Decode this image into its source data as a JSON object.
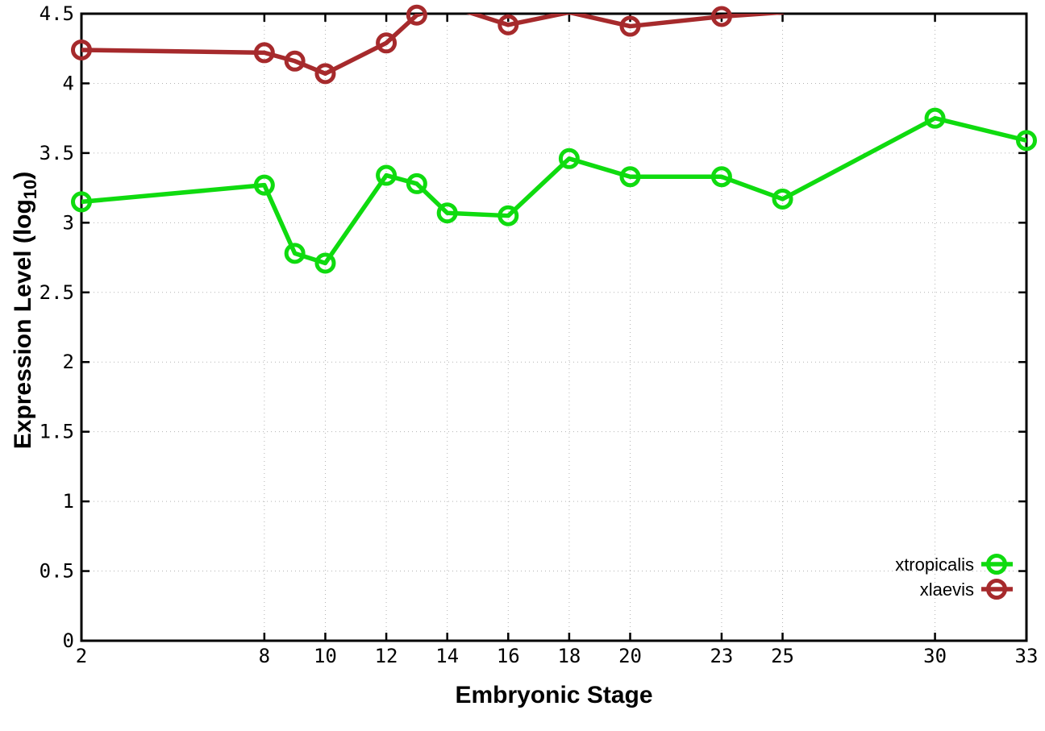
{
  "figure": {
    "ylabel_main": "Expression Level (log",
    "ylabel_sub": "10",
    "ylabel_close": ")"
  },
  "style": {
    "background": "#ffffff",
    "axis_color": "#000000",
    "grid_color": "#b3b3b3",
    "tick_label_color": "#000000",
    "series_green": "#0fdb0f",
    "series_dark_red": "#a62a2c"
  },
  "chart_data": {
    "type": "line",
    "title": "",
    "xlabel": "Embryonic Stage",
    "ylabel": "Expression Level (log10)",
    "xlim": [
      2,
      33
    ],
    "ylim": [
      0,
      4.5
    ],
    "x_ticks": [
      2,
      8,
      10,
      12,
      14,
      16,
      18,
      20,
      23,
      25,
      30,
      33
    ],
    "y_ticks": [
      0,
      0.5,
      1,
      1.5,
      2,
      2.5,
      3,
      3.5,
      4,
      4.5
    ],
    "grid": true,
    "grid_style": "dotted",
    "legend_position": "bottom-right-inside",
    "marker": "open-circle",
    "clip_note": "xlaevis values above 4.5 are clipped at the top plot border; their markers are not drawn",
    "series": [
      {
        "name": "xtropicalis",
        "color": "#0fdb0f",
        "x": [
          2,
          8,
          9,
          10,
          12,
          13,
          14,
          16,
          18,
          20,
          23,
          25,
          30,
          33
        ],
        "values": [
          3.15,
          3.27,
          2.78,
          2.71,
          3.34,
          3.28,
          3.07,
          3.05,
          3.46,
          3.33,
          3.33,
          3.17,
          3.75,
          3.59
        ]
      },
      {
        "name": "xlaevis",
        "color": "#a62a2c",
        "x": [
          2,
          8,
          9,
          10,
          12,
          13,
          14,
          16,
          18,
          20,
          23,
          25
        ],
        "values": [
          4.24,
          4.22,
          4.16,
          4.07,
          4.29,
          4.49,
          4.56,
          4.42,
          4.51,
          4.41,
          4.48,
          4.51
        ]
      }
    ]
  }
}
